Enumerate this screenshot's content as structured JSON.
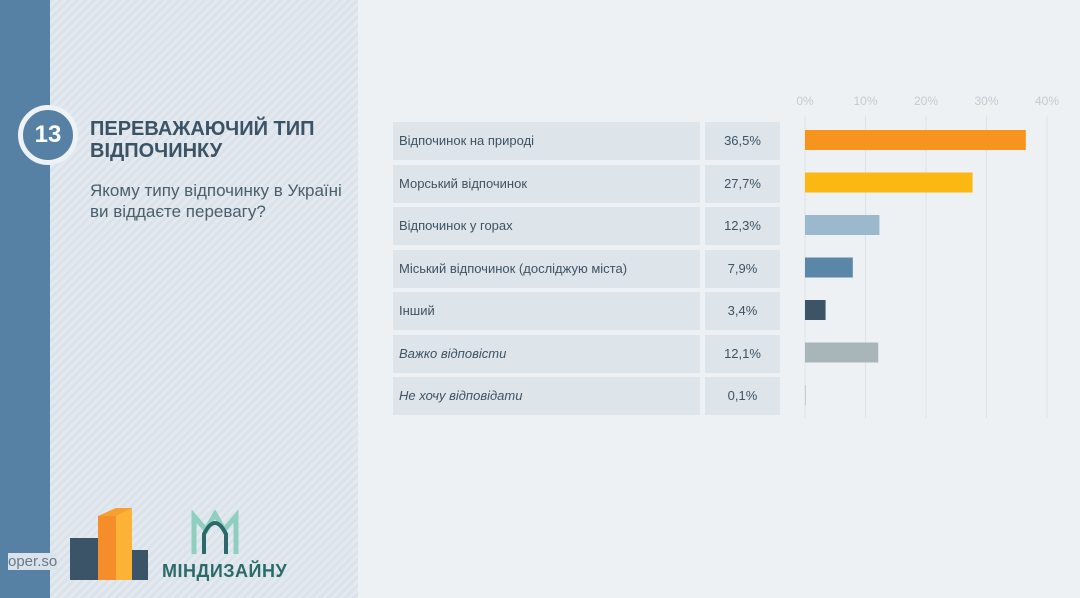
{
  "header": {
    "number": "13",
    "title": "ПЕРЕВАЖАЮЧИЙ ТИП ВІДПОЧИНКУ",
    "question": "Якому типу відпочинку в Україні ви віддаєте перевагу?"
  },
  "footer": {
    "site": "oper.so",
    "partner": "МІНДИЗАЙНУ"
  },
  "chart_data": {
    "type": "bar",
    "orientation": "horizontal",
    "categories": [
      "Відпочинок на природі",
      "Морський відпочинок",
      "Відпочинок у горах",
      "Міський відпочинок (досліджую міста)",
      "Інший",
      "Важко відповісти",
      "Не хочу відповідати"
    ],
    "values": [
      36.5,
      27.7,
      12.3,
      7.9,
      3.4,
      12.1,
      0.1
    ],
    "value_labels": [
      "36,5%",
      "27,7%",
      "12,3%",
      "7,9%",
      "3,4%",
      "12,1%",
      "0,1%"
    ],
    "colors": [
      "#f7941d",
      "#fbb813",
      "#9cb8cc",
      "#5a87a8",
      "#3d5466",
      "#a8b5b9",
      "#a8b5b9"
    ],
    "xticks": [
      "0%",
      "10%",
      "20%",
      "30%",
      "40%"
    ],
    "xlim": [
      0,
      40
    ],
    "grid": true
  }
}
